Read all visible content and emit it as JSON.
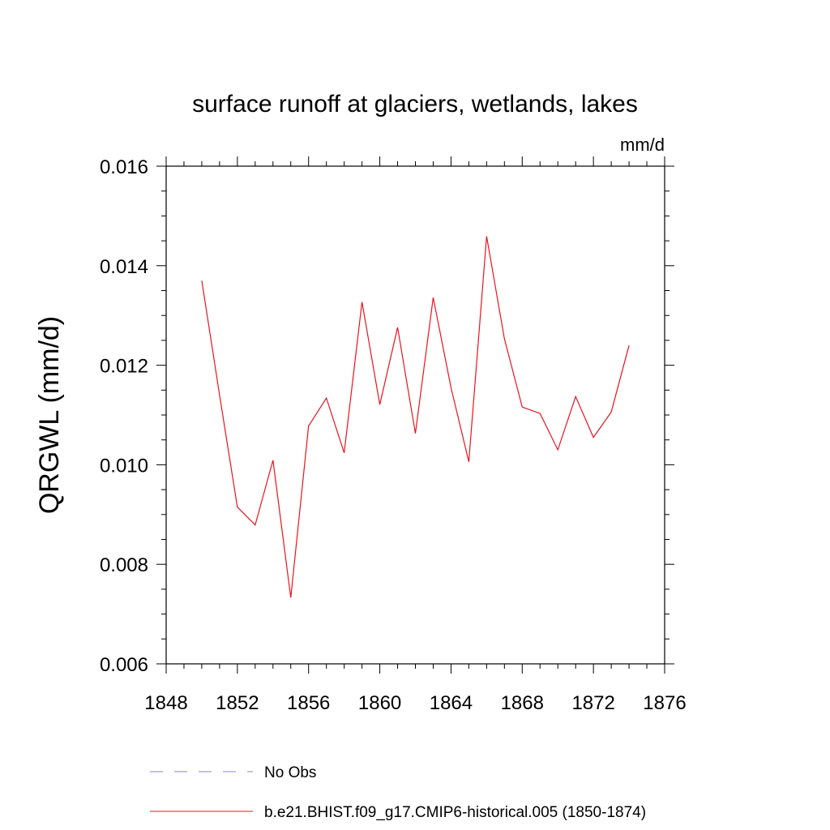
{
  "chart_data": {
    "type": "line",
    "title": "surface runoff at glaciers, wetlands, lakes",
    "units": "mm/d",
    "xlabel": "",
    "ylabel": "QRGWL  (mm/d)",
    "xlim": [
      1848,
      1876
    ],
    "ylim": [
      0.006,
      0.016
    ],
    "x_ticks": [
      "1848",
      "1852",
      "1856",
      "1860",
      "1864",
      "1868",
      "1872",
      "1876"
    ],
    "y_ticks": [
      "0.006",
      "0.008",
      "0.010",
      "0.012",
      "0.014",
      "0.016"
    ],
    "grid": false,
    "legend_position": "bottom",
    "legend": [
      {
        "label": "No Obs",
        "color": "#8a84c8",
        "style": "dashed"
      },
      {
        "label": "b.e21.BHIST.f09_g17.CMIP6-historical.005 (1850-1874)",
        "color": "#e8141e",
        "style": "solid"
      }
    ],
    "series": [
      {
        "name": "b.e21.BHIST.f09_g17.CMIP6-historical.005 (1850-1874)",
        "color": "#e8141e",
        "x": [
          1850,
          1851,
          1852,
          1853,
          1854,
          1855,
          1856,
          1857,
          1858,
          1859,
          1860,
          1861,
          1862,
          1863,
          1864,
          1865,
          1866,
          1867,
          1868,
          1869,
          1870,
          1871,
          1872,
          1873,
          1874
        ],
        "values": [
          0.0137,
          0.0114,
          0.00915,
          0.00879,
          0.01009,
          0.00733,
          0.01078,
          0.01134,
          0.01024,
          0.01327,
          0.01121,
          0.01276,
          0.01063,
          0.01336,
          0.01155,
          0.01006,
          0.01459,
          0.01253,
          0.01116,
          0.01103,
          0.0103,
          0.01137,
          0.01055,
          0.01106,
          0.0124
        ]
      }
    ]
  }
}
